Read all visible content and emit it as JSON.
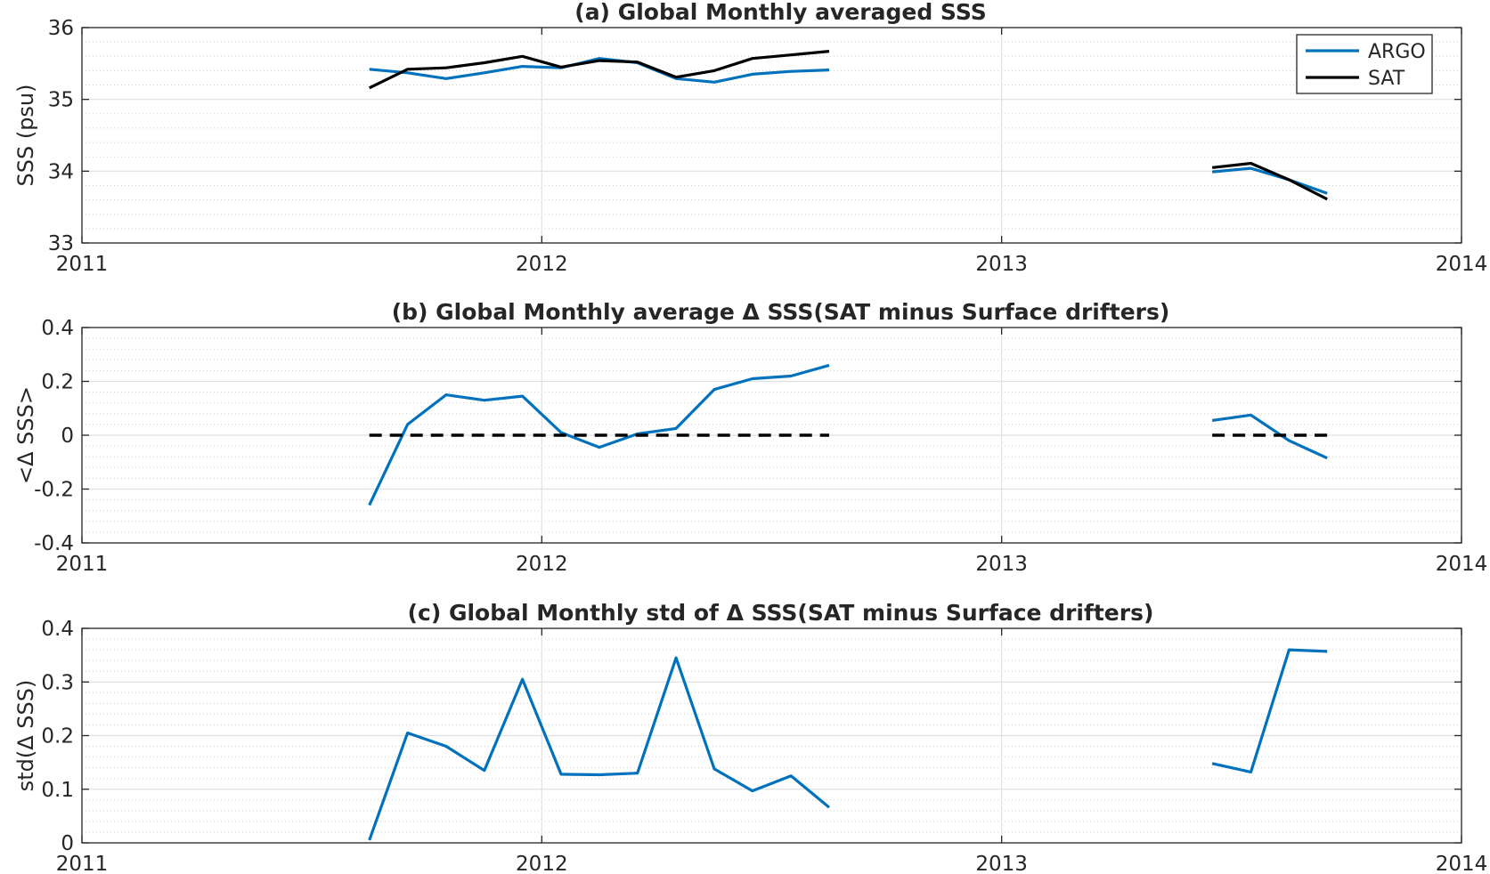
{
  "figure": {
    "colors": {
      "argo": "#0072BD",
      "sat": "#000000",
      "axis": "#262626"
    },
    "grid": true,
    "minor_grid": true
  },
  "chart_data": [
    {
      "id": "a",
      "type": "line",
      "title": "(a) Global Monthly averaged SSS",
      "xlabel": "",
      "ylabel": "SSS (psu)",
      "xlim": [
        2011,
        2014
      ],
      "ylim": [
        33,
        36
      ],
      "xticks": [
        2011,
        2012,
        2013,
        2014
      ],
      "xticklabels": [
        "2011",
        "2012",
        "2013",
        "2014"
      ],
      "yticks": [
        33,
        34,
        35,
        36
      ],
      "yticklabels": [
        "33",
        "34",
        "35",
        "36"
      ],
      "legend": {
        "position": "top-right",
        "entries": [
          "ARGO",
          "SAT"
        ]
      },
      "series": [
        {
          "name": "ARGO",
          "color": "#0072BD",
          "style": "solid",
          "segments": [
            {
              "x": [
                2011.625,
                2011.708,
                2011.792,
                2011.875,
                2011.958,
                2012.042,
                2012.125,
                2012.208,
                2012.292,
                2012.375,
                2012.458,
                2012.542,
                2012.625
              ],
              "y": [
                35.42,
                35.37,
                35.29,
                35.37,
                35.46,
                35.44,
                35.57,
                35.51,
                35.29,
                35.24,
                35.35,
                35.39,
                35.41
              ]
            },
            {
              "x": [
                2013.458,
                2013.542,
                2013.625,
                2013.708
              ],
              "y": [
                33.99,
                34.04,
                33.88,
                33.69
              ]
            }
          ]
        },
        {
          "name": "SAT",
          "color": "#000000",
          "style": "solid",
          "segments": [
            {
              "x": [
                2011.625,
                2011.708,
                2011.792,
                2011.875,
                2011.958,
                2012.042,
                2012.125,
                2012.208,
                2012.292,
                2012.375,
                2012.458,
                2012.542,
                2012.625
              ],
              "y": [
                35.16,
                35.42,
                35.44,
                35.51,
                35.6,
                35.45,
                35.54,
                35.52,
                35.31,
                35.4,
                35.57,
                35.62,
                35.67
              ]
            },
            {
              "x": [
                2013.458,
                2013.542,
                2013.625,
                2013.708
              ],
              "y": [
                34.05,
                34.11,
                33.88,
                33.61
              ]
            }
          ]
        }
      ]
    },
    {
      "id": "b",
      "type": "line",
      "title": "(b) Global Monthly average Δ SSS(SAT minus Surface drifters)",
      "xlabel": "",
      "ylabel": "<Δ SSS>",
      "xlim": [
        2011,
        2014
      ],
      "ylim": [
        -0.4,
        0.4
      ],
      "xticks": [
        2011,
        2012,
        2013,
        2014
      ],
      "xticklabels": [
        "2011",
        "2012",
        "2013",
        "2014"
      ],
      "yticks": [
        -0.4,
        -0.2,
        0,
        0.2,
        0.4
      ],
      "yticklabels": [
        "-0.4",
        "-0.2",
        "0",
        "0.2",
        "0.4"
      ],
      "series": [
        {
          "color": "#0072BD",
          "style": "solid",
          "segments": [
            {
              "x": [
                2011.625,
                2011.708,
                2011.792,
                2011.875,
                2011.958,
                2012.042,
                2012.125,
                2012.208,
                2012.292,
                2012.375,
                2012.458,
                2012.542,
                2012.625
              ],
              "y": [
                -0.26,
                0.04,
                0.15,
                0.13,
                0.145,
                0.01,
                -0.045,
                0.005,
                0.025,
                0.17,
                0.21,
                0.22,
                0.26
              ]
            },
            {
              "x": [
                2013.458,
                2013.542,
                2013.625,
                2013.708
              ],
              "y": [
                0.055,
                0.075,
                -0.02,
                -0.085
              ]
            }
          ]
        },
        {
          "color": "#000000",
          "style": "dashed",
          "segments": [
            {
              "x": [
                2011.625,
                2012.625
              ],
              "y": [
                0,
                0
              ]
            },
            {
              "x": [
                2013.458,
                2013.708
              ],
              "y": [
                0,
                0
              ]
            }
          ]
        }
      ]
    },
    {
      "id": "c",
      "type": "line",
      "title": "(c) Global Monthly std of Δ SSS(SAT minus Surface drifters)",
      "xlabel": "",
      "ylabel": "std(Δ SSS)",
      "xlim": [
        2011,
        2014
      ],
      "ylim": [
        0,
        0.4
      ],
      "xticks": [
        2011,
        2012,
        2013,
        2014
      ],
      "xticklabels": [
        "2011",
        "2012",
        "2013",
        "2014"
      ],
      "yticks": [
        0,
        0.1,
        0.2,
        0.3,
        0.4
      ],
      "yticklabels": [
        "0",
        "0.1",
        "0.2",
        "0.3",
        "0.4"
      ],
      "series": [
        {
          "color": "#0072BD",
          "style": "solid",
          "segments": [
            {
              "x": [
                2011.625,
                2011.708,
                2011.792,
                2011.875,
                2011.958,
                2012.042,
                2012.125,
                2012.208,
                2012.292,
                2012.375,
                2012.458,
                2012.542,
                2012.625
              ],
              "y": [
                0.005,
                0.205,
                0.18,
                0.135,
                0.305,
                0.128,
                0.127,
                0.13,
                0.345,
                0.138,
                0.097,
                0.125,
                0.066
              ]
            },
            {
              "x": [
                2013.458,
                2013.542,
                2013.625,
                2013.708
              ],
              "y": [
                0.148,
                0.132,
                0.36,
                0.357
              ]
            }
          ]
        }
      ]
    }
  ]
}
